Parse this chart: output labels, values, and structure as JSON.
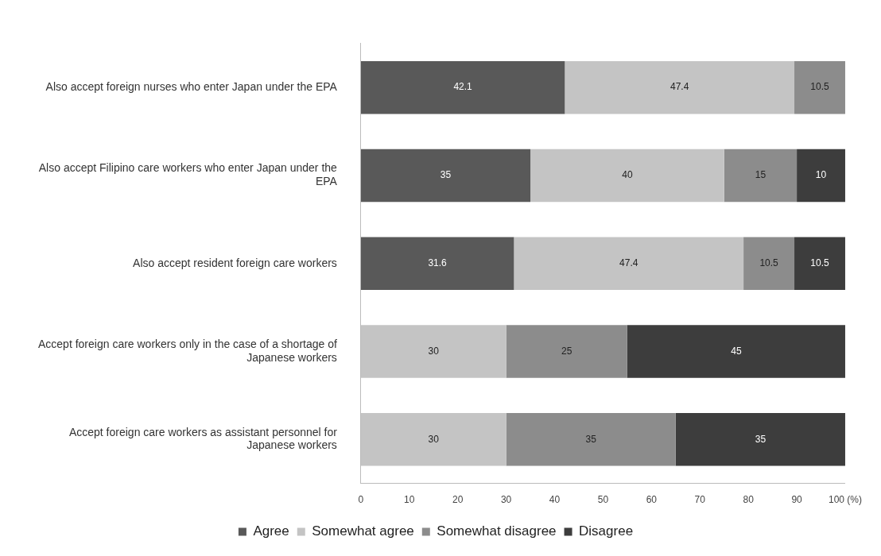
{
  "chart_data": {
    "type": "bar",
    "orientation": "horizontal",
    "stacked": true,
    "data_labels": true,
    "grid": false,
    "legend": "bottom",
    "categories": [
      "Also accept foreign nurses who enter Japan under the EPA",
      "Also accept Filipino care workers who enter Japan under the EPA",
      "Also accept resident foreign care workers",
      "Accept foreign care workers only in the case of a shortage of Japanese workers",
      "Accept foreign care workers as assistant personnel for Japanese workers"
    ],
    "xlim": [
      0,
      100
    ],
    "xticks": [
      0,
      10,
      20,
      30,
      40,
      50,
      60,
      70,
      80,
      90,
      {
        "value": 100,
        "label": "100 (%)"
      }
    ],
    "series": [
      {
        "name": "Agree",
        "color": "#595959",
        "values": [
          42.1,
          35,
          31.6,
          null,
          null
        ]
      },
      {
        "name": "Somewhat agree",
        "color": "#c4c4c4",
        "values": [
          47.4,
          40,
          47.4,
          30,
          30
        ]
      },
      {
        "name": "Somewhat disagree",
        "color": "#8c8c8c",
        "values": [
          10.5,
          15,
          10.5,
          25,
          35
        ]
      },
      {
        "name": "Disagree",
        "color": "#3d3d3d",
        "values": [
          null,
          10,
          10.5,
          45,
          35
        ]
      }
    ]
  }
}
